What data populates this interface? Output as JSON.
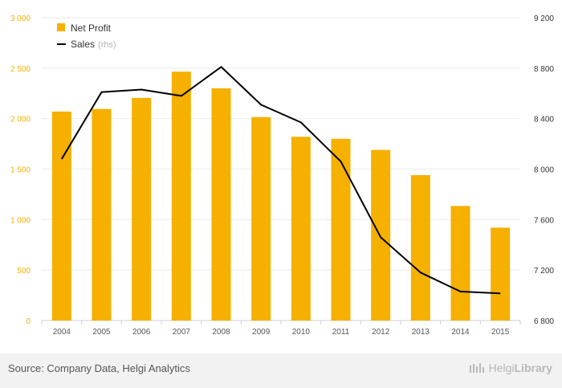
{
  "chart_data": {
    "type": "bar+line",
    "categories": [
      "2004",
      "2005",
      "2006",
      "2007",
      "2008",
      "2009",
      "2010",
      "2011",
      "2012",
      "2013",
      "2014",
      "2015"
    ],
    "series": [
      {
        "name": "Net Profit",
        "axis": "left",
        "kind": "bar",
        "color": "#f5b000",
        "values": [
          2070,
          2095,
          2205,
          2465,
          2300,
          2015,
          1820,
          1800,
          1690,
          1440,
          1135,
          920
        ]
      },
      {
        "name": "Sales",
        "name_suffix": "(rhs)",
        "axis": "right",
        "kind": "line",
        "color": "#000000",
        "values": [
          8080,
          8610,
          8630,
          8580,
          8810,
          8510,
          8370,
          8060,
          7460,
          7180,
          7030,
          7015
        ]
      }
    ],
    "left_axis": {
      "min": 0,
      "max": 3000,
      "ticks": [
        "0",
        "500",
        "1 000",
        "1 500",
        "2 000",
        "2 500",
        "3 000"
      ]
    },
    "right_axis": {
      "min": 6800,
      "max": 9200,
      "ticks": [
        "6 800",
        "7 200",
        "7 600",
        "8 000",
        "8 400",
        "8 800",
        "9 200"
      ]
    },
    "legend_position": "top-left",
    "grid": "horizontal"
  },
  "footer": {
    "source": "Source: Company Data, Helgi Analytics",
    "brand_a": "Helgi",
    "brand_b": "Library"
  }
}
